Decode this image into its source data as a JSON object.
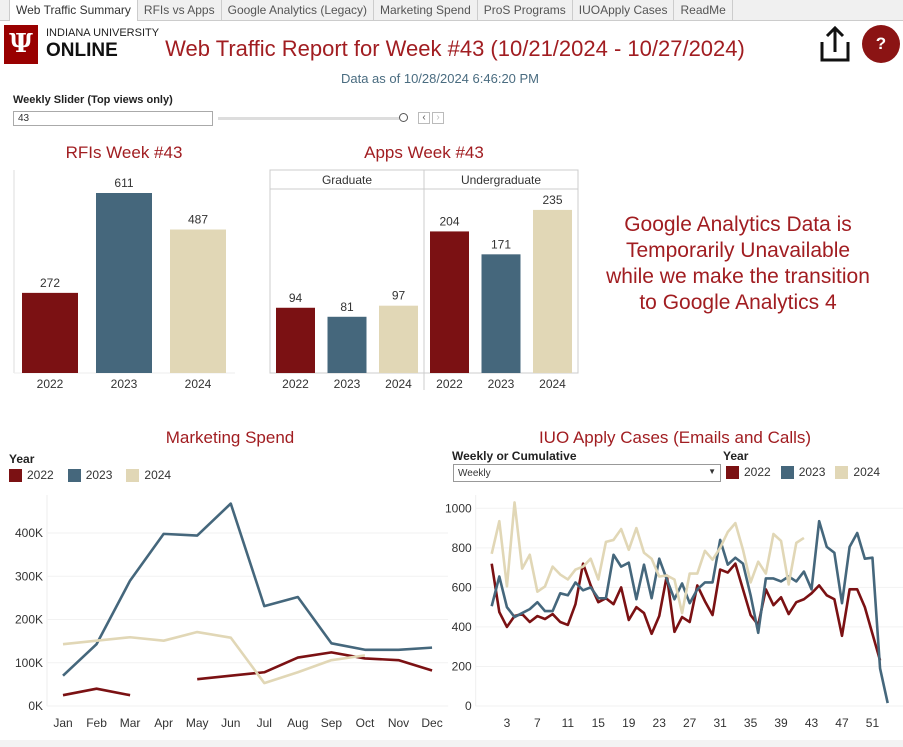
{
  "tabs": [
    "Web Traffic Summary",
    "RFIs vs Apps",
    "Google Analytics (Legacy)",
    "Marketing Spend",
    "ProS Programs",
    "IUOApply Cases",
    "ReadMe"
  ],
  "logo": {
    "line1": "INDIANA UNIVERSITY",
    "line2": "ONLINE",
    "mark": "IU"
  },
  "header": {
    "title": "Web Traffic Report for Week #43 (10/21/2024 - 10/27/2024)",
    "data_as_of": "Data as of 10/28/2024 6:46:20 PM",
    "share_icon": "share-icon",
    "help_label": "?"
  },
  "slider": {
    "label": "Weekly Slider (Top views only)",
    "value": "43",
    "fraction": 1.0
  },
  "colors": {
    "2022": "#7b1113",
    "2023": "#45677c",
    "2024": "#e1d7b6",
    "title": "#a11d21"
  },
  "ga_notice": [
    "Google Analytics Data is",
    "Temporarily Unavailable",
    "while we make the transition",
    "to Google Analytics 4"
  ],
  "chart_data": [
    {
      "type": "bar",
      "title": "RFIs Week #43",
      "categories": [
        "2022",
        "2023",
        "2024"
      ],
      "values": [
        272,
        611,
        487
      ]
    },
    {
      "type": "bar",
      "title": "Apps Week #43",
      "groups": [
        "Graduate",
        "Undergraduate"
      ],
      "categories": [
        "2022",
        "2023",
        "2024"
      ],
      "series": [
        {
          "name": "Graduate",
          "values": [
            94,
            81,
            97
          ]
        },
        {
          "name": "Undergraduate",
          "values": [
            204,
            171,
            235
          ]
        }
      ]
    },
    {
      "type": "line",
      "title": "Marketing Spend",
      "legend_title": "Year",
      "legend_position": "top-left",
      "categories": [
        "Jan",
        "Feb",
        "Mar",
        "Apr",
        "May",
        "Jun",
        "Jul",
        "Aug",
        "Sep",
        "Oct",
        "Nov",
        "Dec"
      ],
      "yticks": [
        "0K",
        "100K",
        "200K",
        "300K",
        "400K"
      ],
      "ylim": [
        0,
        480000
      ],
      "series": [
        {
          "name": "2022",
          "values": [
            25000,
            40000,
            25000,
            null,
            62000,
            70000,
            78000,
            112000,
            124000,
            110000,
            106000,
            82000
          ]
        },
        {
          "name": "2023",
          "values": [
            70000,
            143000,
            290000,
            398000,
            394000,
            468000,
            231000,
            252000,
            145000,
            130000,
            130000,
            135000
          ]
        },
        {
          "name": "2024",
          "values": [
            143000,
            151000,
            159000,
            151000,
            171000,
            158000,
            53000,
            78000,
            106000,
            117000,
            null,
            null
          ]
        }
      ]
    },
    {
      "type": "line",
      "title": "IUO Apply Cases (Emails and Calls)",
      "legend_title": "Year",
      "legend_position": "top-right",
      "filter": {
        "label": "Weekly or Cumulative",
        "value": "Weekly"
      },
      "xticks": [
        "3",
        "7",
        "11",
        "15",
        "19",
        "23",
        "27",
        "31",
        "35",
        "39",
        "43",
        "47",
        "51"
      ],
      "yticks": [
        "0",
        "200",
        "400",
        "600",
        "800",
        "1000"
      ],
      "ylim": [
        0,
        1080
      ],
      "series": [
        {
          "name": "2022",
          "values": [
            720,
            475,
            400,
            455,
            465,
            425,
            455,
            440,
            465,
            425,
            410,
            515,
            720,
            610,
            525,
            545,
            515,
            600,
            435,
            500,
            470,
            365,
            455,
            660,
            375,
            450,
            425,
            610,
            530,
            460,
            690,
            675,
            720,
            590,
            460,
            410,
            590,
            510,
            550,
            465,
            525,
            540,
            570,
            610,
            560,
            540,
            355,
            590,
            590,
            500,
            365,
            230
          ]
        },
        {
          "name": "2023",
          "values": [
            505,
            655,
            500,
            450,
            470,
            490,
            525,
            480,
            480,
            570,
            560,
            625,
            585,
            600,
            545,
            545,
            765,
            705,
            725,
            540,
            715,
            545,
            745,
            640,
            540,
            620,
            520,
            590,
            625,
            625,
            840,
            715,
            750,
            720,
            560,
            370,
            645,
            645,
            630,
            655,
            630,
            680,
            590,
            935,
            805,
            775,
            520,
            805,
            875,
            745,
            750,
            190,
            15
          ]
        },
        {
          "name": "2024",
          "values": [
            770,
            935,
            605,
            1030,
            695,
            765,
            578,
            605,
            705,
            665,
            640,
            690,
            705,
            745,
            640,
            830,
            840,
            895,
            790,
            900,
            775,
            745,
            655,
            660,
            640,
            470,
            670,
            670,
            785,
            740,
            800,
            880,
            925,
            790,
            625,
            730,
            670,
            870,
            835,
            615,
            825,
            850
          ]
        }
      ]
    }
  ]
}
